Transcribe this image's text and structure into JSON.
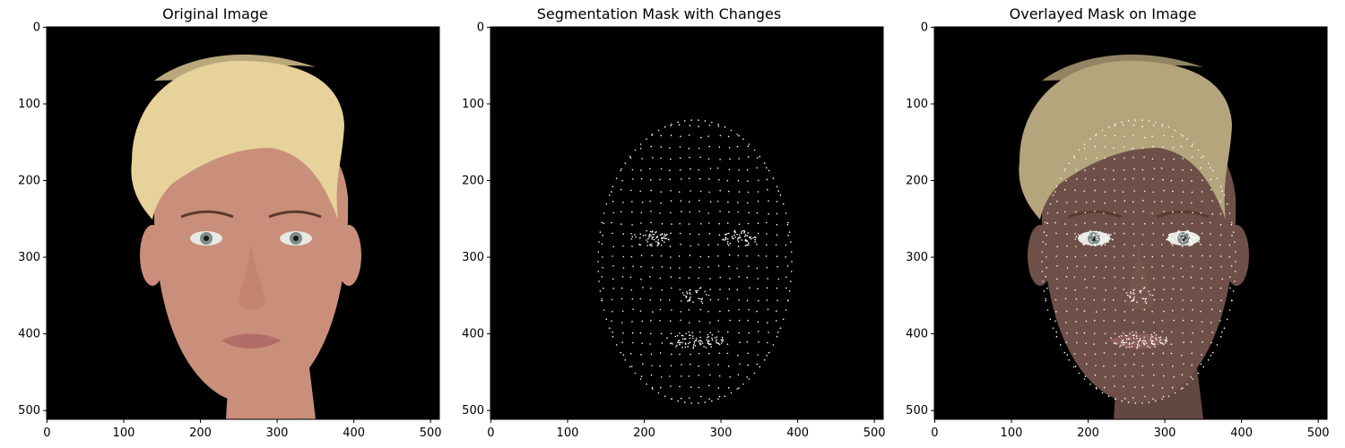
{
  "panels": [
    {
      "title": "Original Image",
      "content": "original",
      "xticks": [
        0,
        100,
        200,
        300,
        400,
        500
      ],
      "yticks": [
        0,
        100,
        200,
        300,
        400,
        500
      ],
      "extent": [
        0,
        512
      ]
    },
    {
      "title": "Segmentation Mask with Changes",
      "content": "mask",
      "xticks": [
        0,
        100,
        200,
        300,
        400,
        500
      ],
      "yticks": [
        0,
        100,
        200,
        300,
        400,
        500
      ],
      "extent": [
        0,
        512
      ]
    },
    {
      "title": "Overlayed Mask on Image",
      "content": "overlay",
      "xticks": [
        0,
        100,
        200,
        300,
        400,
        500
      ],
      "yticks": [
        0,
        100,
        200,
        300,
        400,
        500
      ],
      "extent": [
        0,
        512
      ]
    }
  ],
  "colors": {
    "background": "#000000",
    "skin": "#c98f7a",
    "hair": "#e6d29a",
    "mask_points": "#ffffff",
    "overlay_skin": "#6e5048",
    "overlay_hair": "#b5a57c"
  }
}
